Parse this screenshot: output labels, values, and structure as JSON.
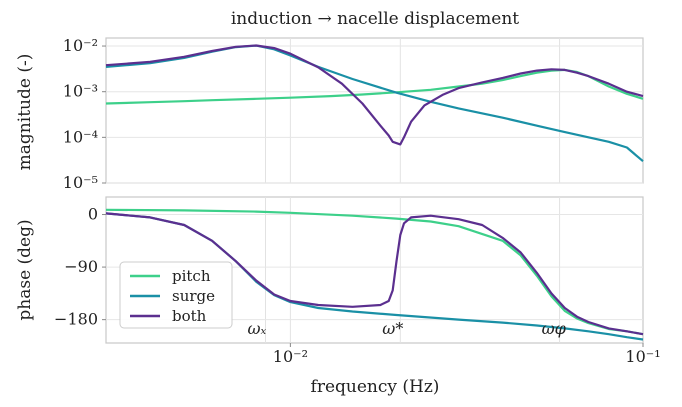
{
  "chart_data": {
    "type": "line",
    "title": "induction → nacelle displacement",
    "xlabel": "frequency (Hz)",
    "xscale": "log",
    "xlim": [
      0.003,
      0.1
    ],
    "x_tick_labels": [
      "10⁻²",
      "10⁻¹"
    ],
    "grid": true,
    "annotations": [
      {
        "text": "ωₓ",
        "x": 0.0085
      },
      {
        "text": "ω*",
        "x": 0.0205
      },
      {
        "text": "ωφ",
        "x": 0.058
      }
    ],
    "legend": {
      "position": "bottom-left of lower panel",
      "entries": [
        "pitch",
        "surge",
        "both"
      ]
    },
    "colors": {
      "pitch": "#3dd08a",
      "surge": "#1a90a6",
      "both": "#5b2f8f"
    },
    "panels": [
      {
        "name": "magnitude",
        "ylabel": "magnitude (-)",
        "yscale": "log",
        "ylim": [
          1e-05,
          0.015
        ],
        "y_tick_labels": [
          "10⁻²",
          "10⁻³",
          "10⁻⁴",
          "10⁻⁵"
        ],
        "series": [
          {
            "name": "pitch",
            "x": [
              0.003,
              0.004,
              0.005,
              0.006,
              0.008,
              0.01,
              0.013,
              0.016,
              0.02,
              0.025,
              0.03,
              0.035,
              0.04,
              0.045,
              0.05,
              0.055,
              0.06,
              0.065,
              0.07,
              0.08,
              0.09,
              0.1
            ],
            "y": [
              0.00055,
              0.00059,
              0.00062,
              0.00065,
              0.0007,
              0.00074,
              0.0008,
              0.00087,
              0.00097,
              0.0011,
              0.0013,
              0.0015,
              0.0018,
              0.0022,
              0.0026,
              0.0029,
              0.003,
              0.0027,
              0.0022,
              0.0013,
              0.0009,
              0.0007
            ]
          },
          {
            "name": "surge",
            "x": [
              0.003,
              0.004,
              0.005,
              0.006,
              0.007,
              0.008,
              0.009,
              0.01,
              0.012,
              0.015,
              0.02,
              0.025,
              0.03,
              0.04,
              0.05,
              0.06,
              0.07,
              0.08,
              0.09,
              0.1
            ],
            "y": [
              0.0035,
              0.0042,
              0.0055,
              0.0075,
              0.0095,
              0.0102,
              0.0085,
              0.0062,
              0.0035,
              0.0019,
              0.00095,
              0.0006,
              0.00043,
              0.00027,
              0.00018,
              0.00013,
              0.0001,
              8e-05,
              6e-05,
              3e-05
            ]
          },
          {
            "name": "both",
            "x": [
              0.003,
              0.004,
              0.005,
              0.006,
              0.007,
              0.008,
              0.009,
              0.01,
              0.012,
              0.014,
              0.016,
              0.018,
              0.019,
              0.0195,
              0.0205,
              0.021,
              0.022,
              0.024,
              0.027,
              0.03,
              0.035,
              0.04,
              0.045,
              0.05,
              0.055,
              0.06,
              0.065,
              0.07,
              0.08,
              0.09,
              0.1
            ],
            "y": [
              0.0038,
              0.0045,
              0.0058,
              0.0078,
              0.0096,
              0.0103,
              0.009,
              0.0068,
              0.0034,
              0.0015,
              0.00055,
              0.00018,
              0.00011,
              8e-05,
              7e-05,
              0.0001,
              0.00022,
              0.0005,
              0.00085,
              0.0012,
              0.0016,
              0.002,
              0.0025,
              0.0029,
              0.0031,
              0.003,
              0.0026,
              0.0022,
              0.0015,
              0.001,
              0.0008
            ]
          }
        ]
      },
      {
        "name": "phase",
        "ylabel": "phase (deg)",
        "ylim": [
          -220,
          30
        ],
        "y_ticks": [
          0,
          -90,
          -180
        ],
        "y_tick_labels": [
          "0",
          "−90",
          "−180"
        ],
        "series": [
          {
            "name": "pitch",
            "x": [
              0.003,
              0.005,
              0.008,
              0.01,
              0.015,
              0.02,
              0.025,
              0.03,
              0.04,
              0.045,
              0.05,
              0.055,
              0.06,
              0.065,
              0.07,
              0.08,
              0.09,
              0.1
            ],
            "y": [
              8,
              7,
              5,
              3,
              -2,
              -7,
              -12,
              -20,
              -45,
              -70,
              -105,
              -140,
              -165,
              -178,
              -186,
              -196,
              -200,
              -205
            ]
          },
          {
            "name": "surge",
            "x": [
              0.003,
              0.004,
              0.005,
              0.006,
              0.007,
              0.008,
              0.009,
              0.01,
              0.012,
              0.015,
              0.02,
              0.03,
              0.04,
              0.05,
              0.06,
              0.07,
              0.08,
              0.09,
              0.1
            ],
            "y": [
              2,
              -5,
              -18,
              -45,
              -80,
              -115,
              -138,
              -150,
              -160,
              -166,
              -172,
              -180,
              -185,
              -190,
              -195,
              -200,
              -205,
              -210,
              -214
            ]
          },
          {
            "name": "both",
            "x": [
              0.003,
              0.004,
              0.005,
              0.006,
              0.007,
              0.008,
              0.009,
              0.01,
              0.012,
              0.015,
              0.018,
              0.019,
              0.0195,
              0.02,
              0.0205,
              0.021,
              0.022,
              0.025,
              0.03,
              0.035,
              0.04,
              0.045,
              0.05,
              0.055,
              0.06,
              0.065,
              0.07,
              0.08,
              0.09,
              0.1
            ],
            "y": [
              2,
              -5,
              -18,
              -45,
              -80,
              -113,
              -137,
              -148,
              -155,
              -158,
              -155,
              -148,
              -130,
              -80,
              -35,
              -15,
              -5,
              -2,
              -8,
              -18,
              -40,
              -65,
              -100,
              -135,
              -160,
              -175,
              -184,
              -195,
              -200,
              -205
            ]
          }
        ]
      }
    ]
  }
}
